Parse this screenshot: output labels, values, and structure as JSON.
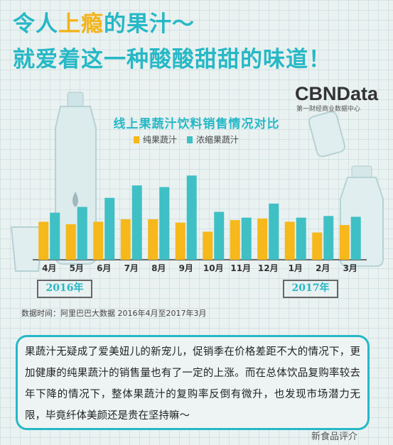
{
  "headline": {
    "line1_a": "令人",
    "line1_hl": "上瘾",
    "line1_b": "的果汁～",
    "line2": "就爱着这一种酸酸甜甜的味道！"
  },
  "logo": {
    "brand": "CBNData",
    "sub": "第一财经商业数据中心"
  },
  "chart_data": {
    "type": "bar",
    "title": "线上果蔬汁饮料销售情况对比",
    "categories": [
      "4月",
      "5月",
      "6月",
      "7月",
      "8月",
      "9月",
      "10月",
      "11月",
      "12月",
      "1月",
      "2月",
      "3月"
    ],
    "series": [
      {
        "name": "纯果蔬汁",
        "color": "#f6b81a",
        "values": [
          46,
          43,
          46,
          49,
          49,
          45,
          34,
          48,
          50,
          46,
          33,
          42
        ]
      },
      {
        "name": "浓缩果蔬汁",
        "color": "#3fc0c4",
        "values": [
          57,
          64,
          75,
          90,
          88,
          102,
          58,
          51,
          68,
          51,
          53,
          52
        ]
      }
    ],
    "ylim": [
      0,
      110
    ],
    "grid": false,
    "legend": "top-center",
    "year_labels": [
      "2016年",
      "2017年"
    ]
  },
  "source": "数据时间：阿里巴巴大数据  2016年4月至2017年3月",
  "note": "果蔬汁无疑成了爱美妞儿的新宠儿，促销季在价格差距不大的情况下，更加健康的纯果蔬汁的销售量也有了一定的上涨。而在总体饮品复购率较去年下降的情况下，整体果蔬汁的复购率反倒有微升，也发现市场潜力无限，毕竟纤体美颜还是贵在坚持嘛～",
  "watermark": "新食品评介"
}
